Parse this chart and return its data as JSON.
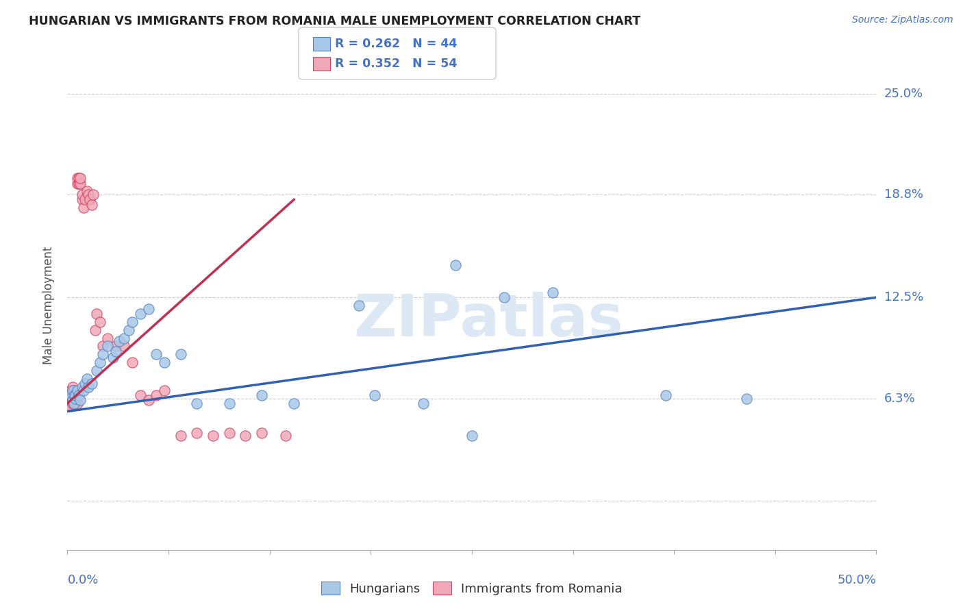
{
  "title": "HUNGARIAN VS IMMIGRANTS FROM ROMANIA MALE UNEMPLOYMENT CORRELATION CHART",
  "source": "Source: ZipAtlas.com",
  "ylabel": "Male Unemployment",
  "ytick_vals": [
    0.0,
    6.3,
    12.5,
    18.8,
    25.0
  ],
  "ytick_labels": [
    "",
    "6.3%",
    "12.5%",
    "18.8%",
    "25.0%"
  ],
  "xmin": 0.0,
  "xmax": 50.0,
  "ymin": -3.0,
  "ymax": 27.0,
  "legend_line1": "R = 0.262   N = 44",
  "legend_line2": "R = 0.352   N = 54",
  "color_hungarian": "#a8c8e8",
  "color_romania": "#f0a8b8",
  "color_hungarian_edge": "#5580c0",
  "color_romania_edge": "#d04060",
  "color_trend_blue": "#3060b0",
  "color_trend_red": "#c03050",
  "background_color": "#ffffff",
  "grid_color": "#cccccc",
  "watermark_color": "#dde8f5",
  "hungarian_x": [
    0.2,
    0.3,
    0.3,
    0.4,
    0.4,
    0.5,
    0.5,
    0.6,
    0.7,
    0.8,
    0.9,
    1.0,
    1.1,
    1.2,
    1.3,
    1.5,
    1.8,
    2.0,
    2.2,
    2.5,
    2.8,
    3.0,
    3.2,
    3.5,
    3.8,
    4.0,
    4.5,
    5.0,
    5.5,
    6.0,
    7.0,
    8.0,
    10.0,
    12.0,
    14.0,
    18.0,
    19.0,
    22.0,
    24.0,
    25.0,
    27.0,
    30.0,
    37.0,
    42.0
  ],
  "hungarian_y": [
    6.5,
    6.8,
    6.2,
    6.5,
    6.0,
    6.3,
    6.5,
    6.8,
    6.5,
    6.2,
    7.0,
    6.8,
    7.2,
    7.5,
    7.0,
    7.2,
    8.0,
    8.5,
    9.0,
    9.5,
    8.8,
    9.2,
    9.8,
    10.0,
    10.5,
    11.0,
    11.5,
    11.8,
    9.0,
    8.5,
    9.0,
    6.0,
    6.0,
    6.5,
    6.0,
    12.0,
    6.5,
    6.0,
    14.5,
    4.0,
    12.5,
    12.8,
    6.5,
    6.3
  ],
  "romania_x": [
    0.1,
    0.1,
    0.1,
    0.2,
    0.2,
    0.2,
    0.2,
    0.3,
    0.3,
    0.3,
    0.3,
    0.3,
    0.4,
    0.4,
    0.4,
    0.4,
    0.5,
    0.5,
    0.5,
    0.6,
    0.6,
    0.6,
    0.7,
    0.7,
    0.8,
    0.8,
    0.9,
    0.9,
    1.0,
    1.1,
    1.2,
    1.3,
    1.4,
    1.5,
    1.6,
    1.7,
    1.8,
    2.0,
    2.2,
    2.5,
    3.0,
    3.5,
    4.0,
    4.5,
    5.0,
    5.5,
    6.0,
    7.0,
    8.0,
    9.0,
    10.0,
    11.0,
    12.0,
    13.5
  ],
  "romania_y": [
    6.0,
    6.2,
    6.5,
    5.8,
    6.2,
    6.5,
    6.8,
    6.0,
    6.2,
    6.5,
    6.8,
    7.0,
    6.0,
    6.2,
    6.5,
    6.8,
    6.0,
    6.2,
    6.5,
    6.0,
    19.5,
    19.8,
    19.5,
    19.8,
    19.5,
    19.8,
    18.5,
    18.8,
    18.0,
    18.5,
    19.0,
    18.8,
    18.5,
    18.2,
    18.8,
    10.5,
    11.5,
    11.0,
    9.5,
    10.0,
    9.5,
    9.5,
    8.5,
    6.5,
    6.2,
    6.5,
    6.8,
    4.0,
    4.2,
    4.0,
    4.2,
    4.0,
    4.2,
    4.0
  ],
  "hung_trend_x": [
    0.0,
    50.0
  ],
  "hung_trend_y": [
    5.5,
    12.5
  ],
  "rom_trend_x": [
    0.0,
    14.0
  ],
  "rom_trend_y": [
    6.0,
    18.5
  ]
}
